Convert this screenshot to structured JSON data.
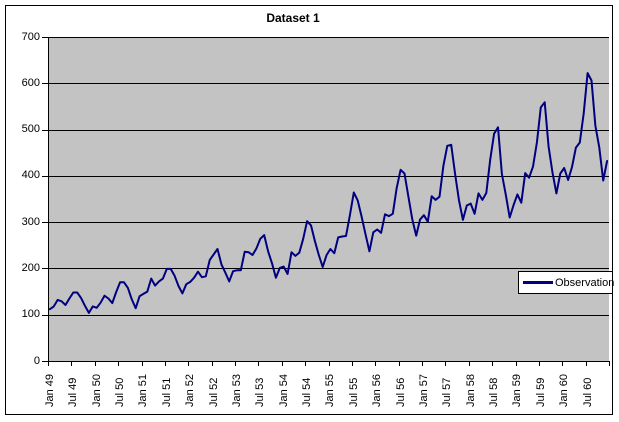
{
  "chart": {
    "title": "Dataset 1",
    "legend": {
      "label": "Observation"
    },
    "colors": {
      "line": "#000080",
      "plot_bg": "#c3c3c3",
      "grid": "#000000",
      "axis": "#000000",
      "frame": "#000000",
      "legend_bg": "#ffffff"
    }
  },
  "chart_data": {
    "type": "line",
    "title": "Dataset 1",
    "x_range": "Jan 1949 to Dec 1960, monthly (144 points)",
    "x_tick_labels": [
      "Jan 49",
      "Jul 49",
      "Jan 50",
      "Jul 50",
      "Jan 51",
      "Jul 51",
      "Jan 52",
      "Jul 52",
      "Jan 53",
      "Jul 53",
      "Jan 54",
      "Jul 54",
      "Jan 55",
      "Jul 55",
      "Jan 56",
      "Jul 56",
      "Jan 57",
      "Jul 57",
      "Jan 58",
      "Jul 58",
      "Jan 59",
      "Jul 59",
      "Jan 60",
      "Jul 60"
    ],
    "y_tick_labels": [
      "0",
      "100",
      "200",
      "300",
      "400",
      "500",
      "600",
      "700"
    ],
    "ylim": [
      0,
      700
    ],
    "grid": "horizontal-major",
    "legend_position": "right-middle",
    "series": [
      {
        "name": "Observation",
        "values": [
          112,
          118,
          132,
          129,
          121,
          135,
          148,
          148,
          136,
          119,
          104,
          118,
          115,
          126,
          141,
          135,
          125,
          149,
          170,
          170,
          158,
          133,
          114,
          140,
          145,
          150,
          178,
          163,
          172,
          178,
          199,
          199,
          184,
          162,
          146,
          166,
          171,
          180,
          193,
          181,
          183,
          218,
          230,
          242,
          209,
          191,
          172,
          194,
          196,
          196,
          236,
          235,
          229,
          243,
          264,
          272,
          237,
          211,
          180,
          201,
          204,
          188,
          235,
          227,
          234,
          264,
          302,
          293,
          259,
          229,
          203,
          229,
          242,
          233,
          267,
          269,
          270,
          315,
          364,
          347,
          312,
          274,
          237,
          278,
          284,
          277,
          317,
          313,
          318,
          374,
          413,
          405,
          355,
          306,
          271,
          306,
          315,
          301,
          356,
          348,
          355,
          422,
          465,
          467,
          404,
          347,
          305,
          336,
          340,
          318,
          362,
          348,
          363,
          435,
          491,
          505,
          404,
          359,
          310,
          337,
          360,
          342,
          406,
          396,
          420,
          472,
          548,
          559,
          463,
          407,
          362,
          405,
          417,
          391,
          419,
          461,
          472,
          535,
          622,
          606,
          508,
          461,
          390,
          432
        ]
      }
    ]
  }
}
